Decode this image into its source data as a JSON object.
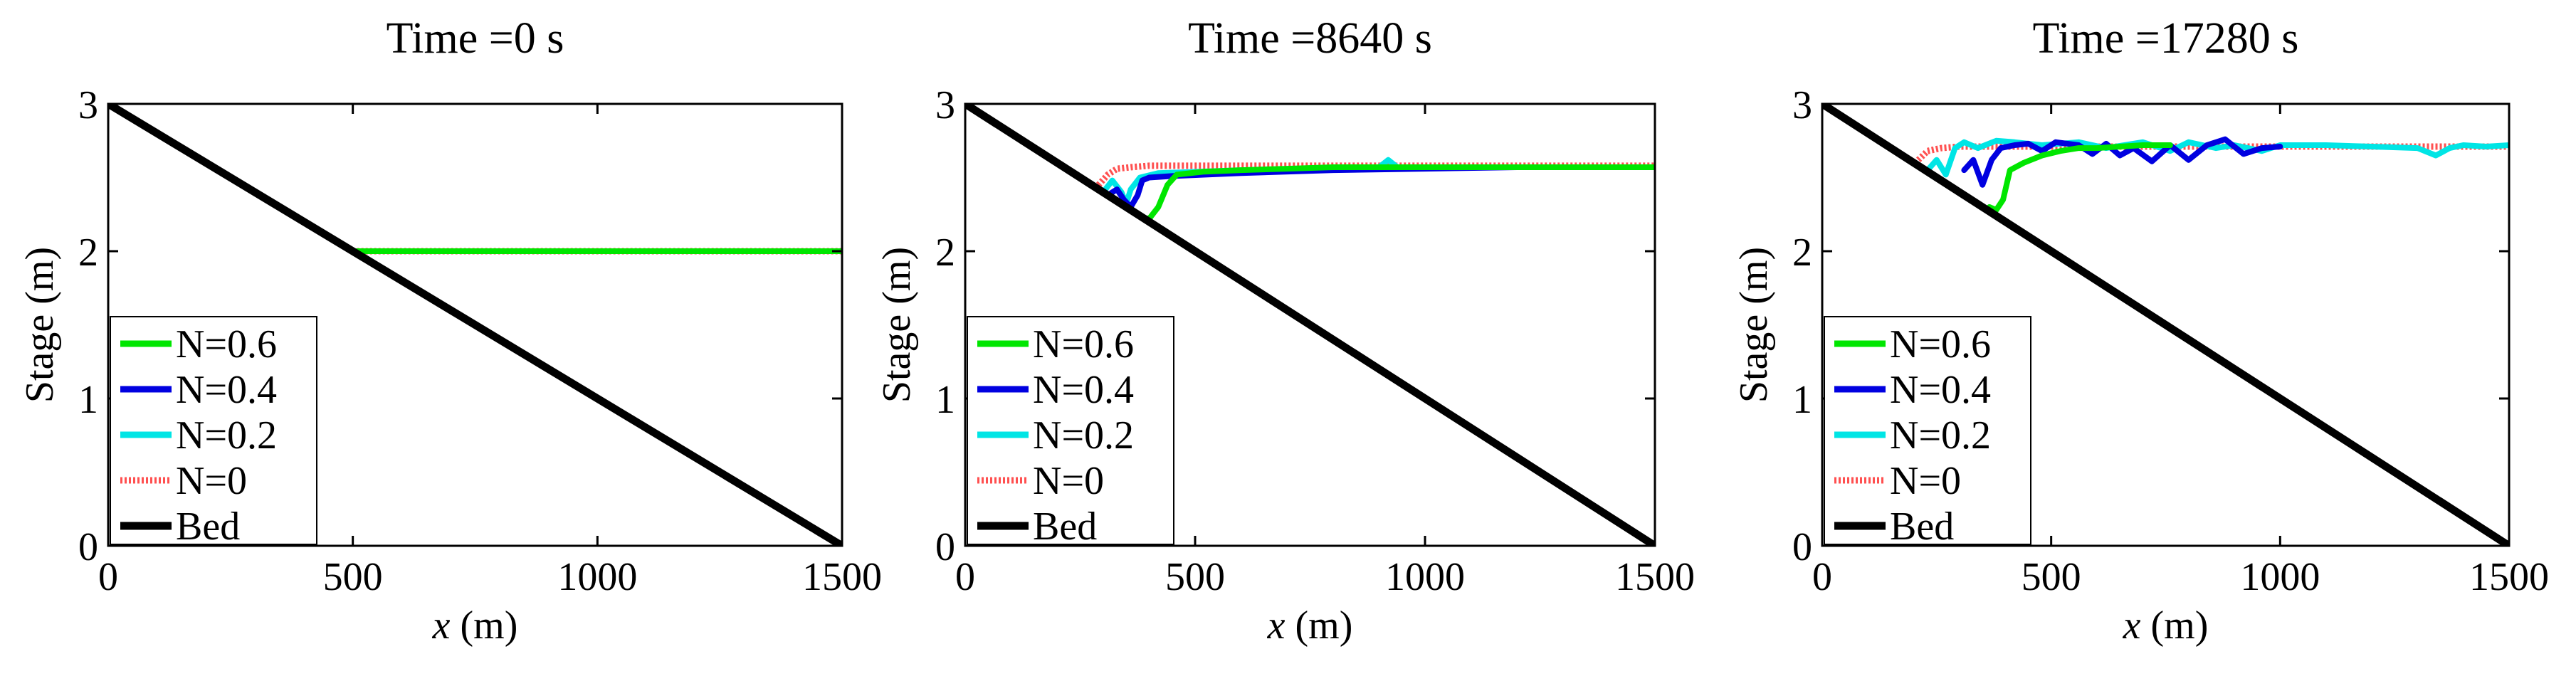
{
  "figure": {
    "legend_entries": [
      {
        "label": "N=0.6",
        "color": "#00e600",
        "style": "solid"
      },
      {
        "label": "N=0.4",
        "color": "#0000e0",
        "style": "solid"
      },
      {
        "label": "N=0.2",
        "color": "#00e5e5",
        "style": "solid"
      },
      {
        "label": "N=0",
        "color": "#ff5050",
        "style": "dotted"
      },
      {
        "label": "Bed",
        "color": "#000000",
        "style": "solid"
      }
    ]
  },
  "chart_data": [
    {
      "type": "line",
      "title": "Time =0 s",
      "xlabel_italic": "x",
      "xlabel_unit": " (m)",
      "ylabel": "Stage (m)",
      "xlim": [
        0,
        1500
      ],
      "ylim": [
        0,
        3
      ],
      "xticks": [
        0,
        500,
        1000,
        1500
      ],
      "yticks": [
        0,
        1,
        2,
        3
      ],
      "grid": false,
      "legend_position": "lower-left",
      "series": [
        {
          "name": "N=0.6",
          "x": [
            500,
            1500
          ],
          "y": [
            2.0,
            2.0
          ]
        },
        {
          "name": "N=0.4",
          "x": [
            500,
            1500
          ],
          "y": [
            2.0,
            2.0
          ]
        },
        {
          "name": "N=0.2",
          "x": [
            500,
            1500
          ],
          "y": [
            2.0,
            2.0
          ]
        },
        {
          "name": "N=0",
          "x": [
            500,
            1500
          ],
          "y": [
            2.0,
            2.0
          ]
        },
        {
          "name": "Bed",
          "x": [
            0,
            1500
          ],
          "y": [
            3.0,
            0.0
          ]
        }
      ]
    },
    {
      "type": "line",
      "title": "Time =8640 s",
      "xlabel_italic": "x",
      "xlabel_unit": " (m)",
      "ylabel": "Stage (m)",
      "xlim": [
        0,
        1500
      ],
      "ylim": [
        0,
        3
      ],
      "xticks": [
        0,
        500,
        1000,
        1500
      ],
      "yticks": [
        0,
        1,
        2,
        3
      ],
      "grid": false,
      "legend_position": "lower-left",
      "series": [
        {
          "name": "N=0.6",
          "x": [
            385,
            400,
            420,
            440,
            460,
            520,
            600,
            700,
            800,
            900,
            1000,
            1200,
            1500
          ],
          "y": [
            2.23,
            2.22,
            2.3,
            2.45,
            2.52,
            2.54,
            2.55,
            2.56,
            2.57,
            2.57,
            2.57,
            2.57,
            2.57
          ]
        },
        {
          "name": "N=0.4",
          "x": [
            310,
            330,
            345,
            360,
            375,
            385,
            400,
            450,
            600,
            800,
            1000,
            1200,
            1500
          ],
          "y": [
            2.38,
            2.42,
            2.35,
            2.3,
            2.38,
            2.48,
            2.5,
            2.51,
            2.53,
            2.55,
            2.56,
            2.57,
            2.57
          ]
        },
        {
          "name": "N=0.2",
          "x": [
            300,
            320,
            340,
            350,
            360,
            380,
            420,
            600,
            800,
            900,
            920,
            940,
            960,
            1000,
            1500
          ],
          "y": [
            2.4,
            2.48,
            2.4,
            2.32,
            2.42,
            2.5,
            2.53,
            2.55,
            2.56,
            2.57,
            2.62,
            2.57,
            2.57,
            2.57,
            2.57
          ]
        },
        {
          "name": "N=0",
          "x": [
            290,
            310,
            330,
            360,
            400,
            500,
            700,
            1000,
            1500
          ],
          "y": [
            2.45,
            2.52,
            2.56,
            2.57,
            2.58,
            2.58,
            2.58,
            2.58,
            2.58
          ]
        },
        {
          "name": "Bed",
          "x": [
            0,
            1500
          ],
          "y": [
            3.0,
            0.0
          ]
        }
      ]
    },
    {
      "type": "line",
      "title": "Time =17280 s",
      "xlabel_italic": "x",
      "xlabel_unit": " (m)",
      "ylabel": "Stage (m)",
      "xlim": [
        0,
        1500
      ],
      "ylim": [
        0,
        3
      ],
      "xticks": [
        0,
        500,
        1000,
        1500
      ],
      "yticks": [
        0,
        1,
        2,
        3
      ],
      "grid": false,
      "legend_position": "lower-left",
      "series": [
        {
          "name": "N=0.6",
          "x": [
            365,
            380,
            395,
            410,
            440,
            480,
            520,
            560,
            600,
            650,
            700,
            760
          ],
          "y": [
            2.3,
            2.28,
            2.35,
            2.55,
            2.6,
            2.65,
            2.68,
            2.7,
            2.7,
            2.71,
            2.72,
            2.72
          ]
        },
        {
          "name": "N=0.4",
          "x": [
            310,
            330,
            350,
            370,
            390,
            420,
            450,
            480,
            510,
            560,
            590,
            620,
            650,
            680,
            720,
            760,
            800,
            840,
            880,
            920,
            960,
            1000
          ],
          "y": [
            2.55,
            2.62,
            2.45,
            2.62,
            2.7,
            2.72,
            2.73,
            2.68,
            2.74,
            2.72,
            2.66,
            2.73,
            2.65,
            2.7,
            2.61,
            2.72,
            2.62,
            2.72,
            2.76,
            2.66,
            2.7,
            2.71
          ]
        },
        {
          "name": "N=0.2",
          "x": [
            230,
            250,
            270,
            290,
            310,
            340,
            380,
            420,
            480,
            560,
            620,
            700,
            760,
            800,
            860,
            900,
            960,
            1000,
            1100,
            1200,
            1300,
            1340,
            1370,
            1400,
            1450,
            1500
          ],
          "y": [
            2.55,
            2.62,
            2.52,
            2.7,
            2.74,
            2.7,
            2.75,
            2.74,
            2.72,
            2.74,
            2.7,
            2.74,
            2.68,
            2.74,
            2.7,
            2.72,
            2.68,
            2.72,
            2.72,
            2.71,
            2.7,
            2.65,
            2.7,
            2.72,
            2.71,
            2.72
          ]
        },
        {
          "name": "N=0",
          "x": [
            210,
            230,
            260,
            300,
            360,
            450,
            600,
            800,
            1000,
            1200,
            1500
          ],
          "y": [
            2.62,
            2.68,
            2.7,
            2.71,
            2.71,
            2.71,
            2.71,
            2.71,
            2.71,
            2.71,
            2.71
          ]
        },
        {
          "name": "Bed",
          "x": [
            0,
            1500
          ],
          "y": [
            3.0,
            0.0
          ]
        }
      ]
    }
  ]
}
